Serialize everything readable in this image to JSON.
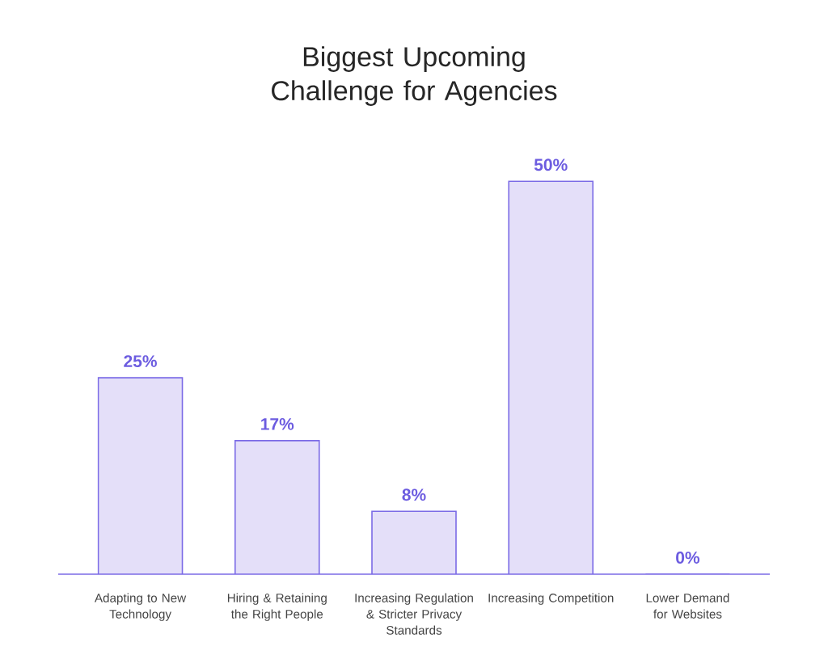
{
  "chart_data": {
    "type": "bar",
    "title": "Biggest Upcoming Challenge for Agencies",
    "categories": [
      "Adapting to New Technology",
      "Hiring & Retaining the Right People",
      "Increasing Regulation & Stricter Privacy Standards",
      "Increasing Competition",
      "Lower Demand for Websites"
    ],
    "values": [
      25,
      17,
      8,
      50,
      0
    ],
    "color": "#e4dff9",
    "value_labels": [
      "25%",
      "17%",
      "8%",
      "50%",
      "0%"
    ]
  }
}
